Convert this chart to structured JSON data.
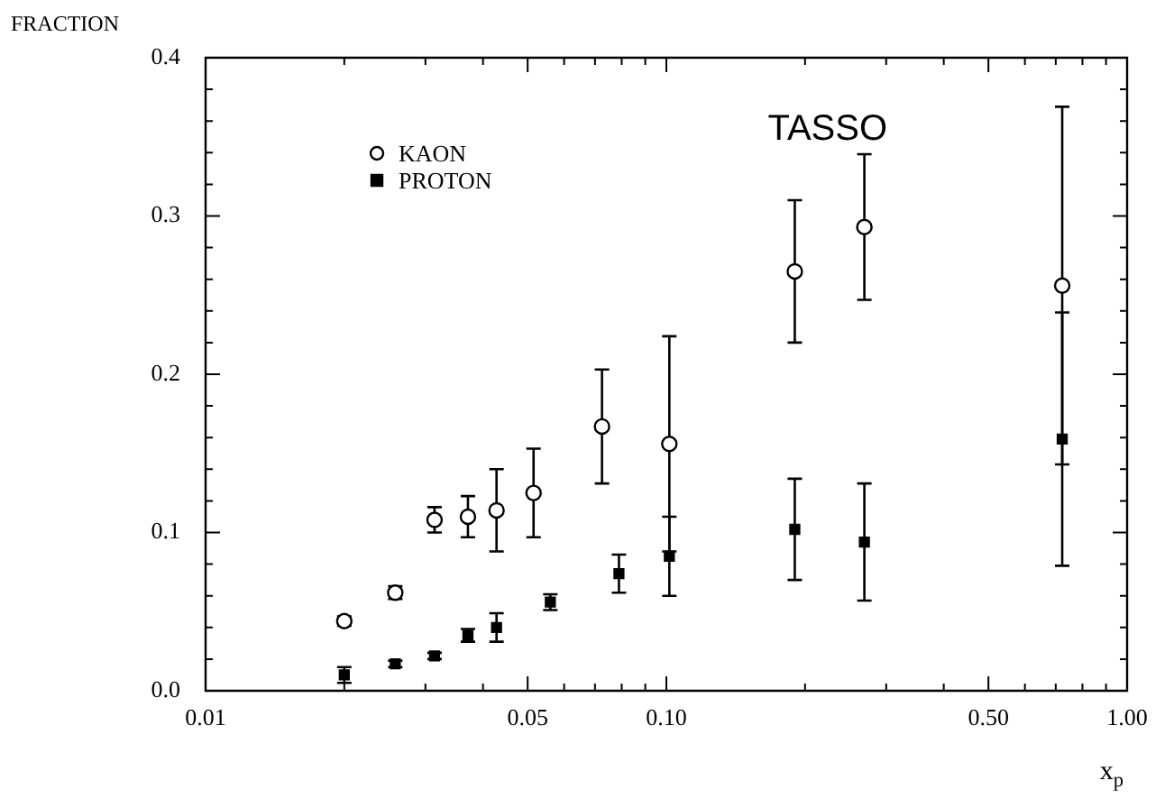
{
  "chart_data": {
    "type": "scatter",
    "ylabel": "FRACTION",
    "xlabel": "x$_{p}$",
    "annotations": [
      "TASSO"
    ],
    "log": "x",
    "grid": false,
    "legend": "top left",
    "xlim": [
      0.01,
      1.0
    ],
    "ylim": [
      0,
      0.4
    ],
    "xticks": [
      {
        "value": 0.01,
        "label": "0.01"
      },
      {
        "value": 0.02,
        "label": null
      },
      {
        "value": 0.03,
        "label": null
      },
      {
        "value": 0.04,
        "label": null
      },
      {
        "value": 0.05,
        "label": "0.05"
      },
      {
        "value": 0.06,
        "label": null
      },
      {
        "value": 0.07,
        "label": null
      },
      {
        "value": 0.08,
        "label": null
      },
      {
        "value": 0.09,
        "label": null
      },
      {
        "value": 0.1,
        "label": "0.10"
      },
      {
        "value": 0.2,
        "label": null
      },
      {
        "value": 0.3,
        "label": null
      },
      {
        "value": 0.4,
        "label": null
      },
      {
        "value": 0.5,
        "label": "0.50"
      },
      {
        "value": 0.6,
        "label": null
      },
      {
        "value": 0.7,
        "label": null
      },
      {
        "value": 0.8,
        "label": null
      },
      {
        "value": 0.9,
        "label": null
      },
      {
        "value": 1.0,
        "label": "1.00"
      }
    ],
    "yticks": [
      {
        "value": 0,
        "label": "0.0"
      },
      {
        "value": 0.02,
        "label": null
      },
      {
        "value": 0.04,
        "label": null
      },
      {
        "value": 0.06,
        "label": null
      },
      {
        "value": 0.08,
        "label": null
      },
      {
        "value": 0.1,
        "label": "0.1"
      },
      {
        "value": 0.12,
        "label": null
      },
      {
        "value": 0.14,
        "label": null
      },
      {
        "value": 0.16,
        "label": null
      },
      {
        "value": 0.18,
        "label": null
      },
      {
        "value": 0.2,
        "label": "0.2"
      },
      {
        "value": 0.22,
        "label": null
      },
      {
        "value": 0.24,
        "label": null
      },
      {
        "value": 0.26,
        "label": null
      },
      {
        "value": 0.28,
        "label": null
      },
      {
        "value": 0.3,
        "label": "0.3"
      },
      {
        "value": 0.32,
        "label": null
      },
      {
        "value": 0.34,
        "label": null
      },
      {
        "value": 0.36,
        "label": null
      },
      {
        "value": 0.38,
        "label": null
      },
      {
        "value": 0.4,
        "label": "0.4"
      }
    ],
    "series": [
      {
        "name": "KAON",
        "color": "#000000",
        "marker": "circle",
        "x": [
          0.02,
          0.0258,
          0.0314,
          0.0371,
          0.0428,
          0.0515,
          0.0725,
          0.1015,
          0.19,
          0.269,
          0.723
        ],
        "values": [
          0.044,
          0.062,
          0.108,
          0.11,
          0.114,
          0.125,
          0.167,
          0.156,
          0.265,
          0.293,
          0.256
        ],
        "errors": [
          0.003,
          0.004,
          0.008,
          0.013,
          0.026,
          0.028,
          0.036,
          0.068,
          0.045,
          0.046,
          0.113
        ]
      },
      {
        "name": "PROTON",
        "color": "#000000",
        "marker": "square",
        "x": [
          0.02,
          0.0258,
          0.0314,
          0.0371,
          0.0428,
          0.056,
          0.0789,
          0.1015,
          0.19,
          0.269,
          0.723
        ],
        "values": [
          0.01,
          0.017,
          0.022,
          0.035,
          0.04,
          0.056,
          0.074,
          0.085,
          0.102,
          0.094,
          0.159
        ],
        "errors": [
          0.005,
          0.002,
          0.002,
          0.004,
          0.009,
          0.005,
          0.012,
          0.025,
          0.032,
          0.037,
          0.08
        ]
      }
    ]
  }
}
